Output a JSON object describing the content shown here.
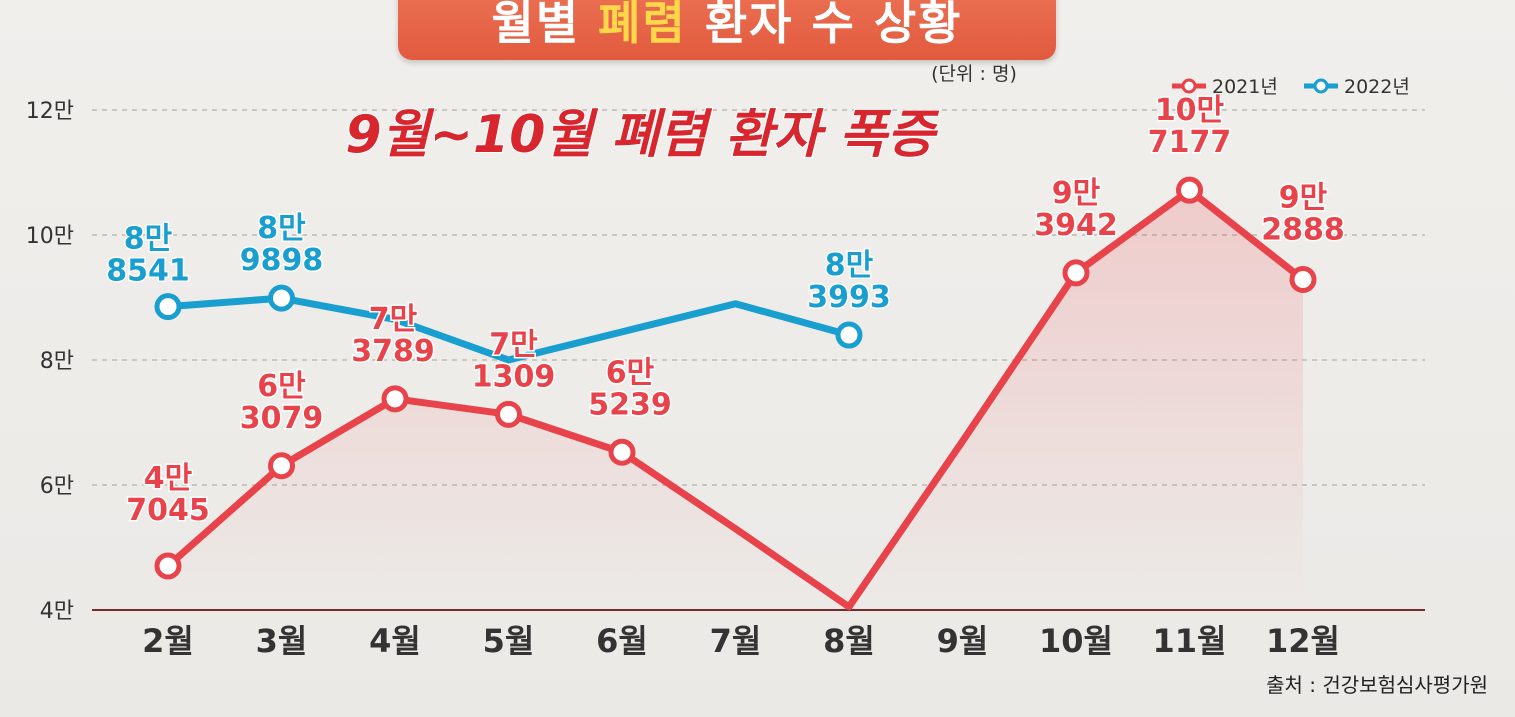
{
  "chart_data": {
    "type": "line",
    "title_parts": [
      "월별 ",
      "폐렴",
      " 환자 수 상황"
    ],
    "subtitle": "9월~10월 폐렴 환자 폭증",
    "unit_note": "(단위 : 명)",
    "source": "출처 : 건강보험심사평가원",
    "categories": [
      "2월",
      "3월",
      "4월",
      "5월",
      "6월",
      "7월",
      "8월",
      "9월",
      "10월",
      "11월",
      "12월"
    ],
    "y_ticks": [
      {
        "value": 40000,
        "label": "4만"
      },
      {
        "value": 60000,
        "label": "6만"
      },
      {
        "value": 80000,
        "label": "8만"
      },
      {
        "value": 100000,
        "label": "10만"
      },
      {
        "value": 120000,
        "label": "12만"
      }
    ],
    "ylim": [
      40000,
      120000
    ],
    "grid": true,
    "legend_position": "top-right",
    "series": [
      {
        "name": "2021년",
        "color": "#e8424a",
        "values": [
          47045,
          63079,
          73789,
          71309,
          65239,
          53000,
          40500,
          67000,
          93942,
          107177,
          92888
        ],
        "markers": [
          true,
          true,
          true,
          true,
          true,
          false,
          false,
          false,
          true,
          true,
          true
        ],
        "labels": [
          [
            "4만",
            "7045"
          ],
          [
            "6만",
            "3079"
          ],
          [
            "7만",
            "3789"
          ],
          [
            "7만",
            "1309"
          ],
          [
            "6만",
            "5239"
          ],
          null,
          null,
          null,
          [
            "9만",
            "3942"
          ],
          [
            "10만",
            "7177"
          ],
          [
            "9만",
            "2888"
          ]
        ]
      },
      {
        "name": "2022년",
        "color": "#189ecf",
        "values": [
          88541,
          89898,
          86500,
          80000,
          84500,
          89000,
          83993,
          null,
          null,
          null,
          null
        ],
        "markers": [
          true,
          true,
          false,
          false,
          false,
          false,
          true,
          false,
          false,
          false,
          false
        ],
        "labels": [
          [
            "8만",
            "8541"
          ],
          [
            "8만",
            "9898"
          ],
          null,
          null,
          null,
          null,
          [
            "8만",
            "3993"
          ],
          null,
          null,
          null,
          null
        ]
      }
    ]
  }
}
